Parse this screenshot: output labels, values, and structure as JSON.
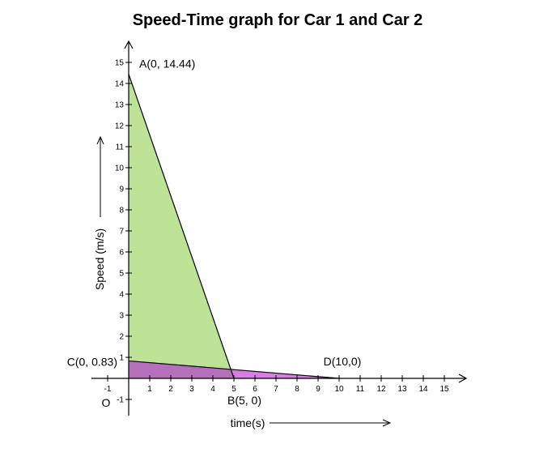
{
  "chart_data": {
    "type": "area",
    "title": "Speed-Time graph for Car 1 and Car 2",
    "xlabel": "time(s)",
    "ylabel": "Speed (m/s)",
    "origin_label": "O",
    "xlim": [
      -1,
      15
    ],
    "ylim": [
      -1,
      15
    ],
    "x_ticks": [
      -1,
      1,
      2,
      3,
      4,
      5,
      6,
      7,
      8,
      9,
      10,
      11,
      12,
      13,
      14,
      15
    ],
    "y_ticks": [
      -1,
      1,
      2,
      3,
      4,
      5,
      6,
      7,
      8,
      9,
      10,
      11,
      12,
      13,
      14,
      15
    ],
    "grid": false,
    "series": [
      {
        "points": [
          [
            0,
            14.44
          ],
          [
            5,
            0
          ]
        ],
        "fill": "#bde396",
        "stroke": "#000000"
      },
      {
        "points": [
          [
            0,
            0.83
          ],
          [
            10,
            0
          ]
        ],
        "fill": "#d97ce6",
        "stroke": "#000000"
      }
    ],
    "overlap_fill": "#b56fbb",
    "annotations": [
      {
        "text": "A(0, 14.44)",
        "x": 0,
        "y": 14.44
      },
      {
        "text": "B(5, 0)",
        "x": 5,
        "y": 0
      },
      {
        "text": "C(0, 0.83)",
        "x": 0,
        "y": 0.83
      },
      {
        "text": "D(10,0)",
        "x": 10,
        "y": 0
      }
    ]
  }
}
